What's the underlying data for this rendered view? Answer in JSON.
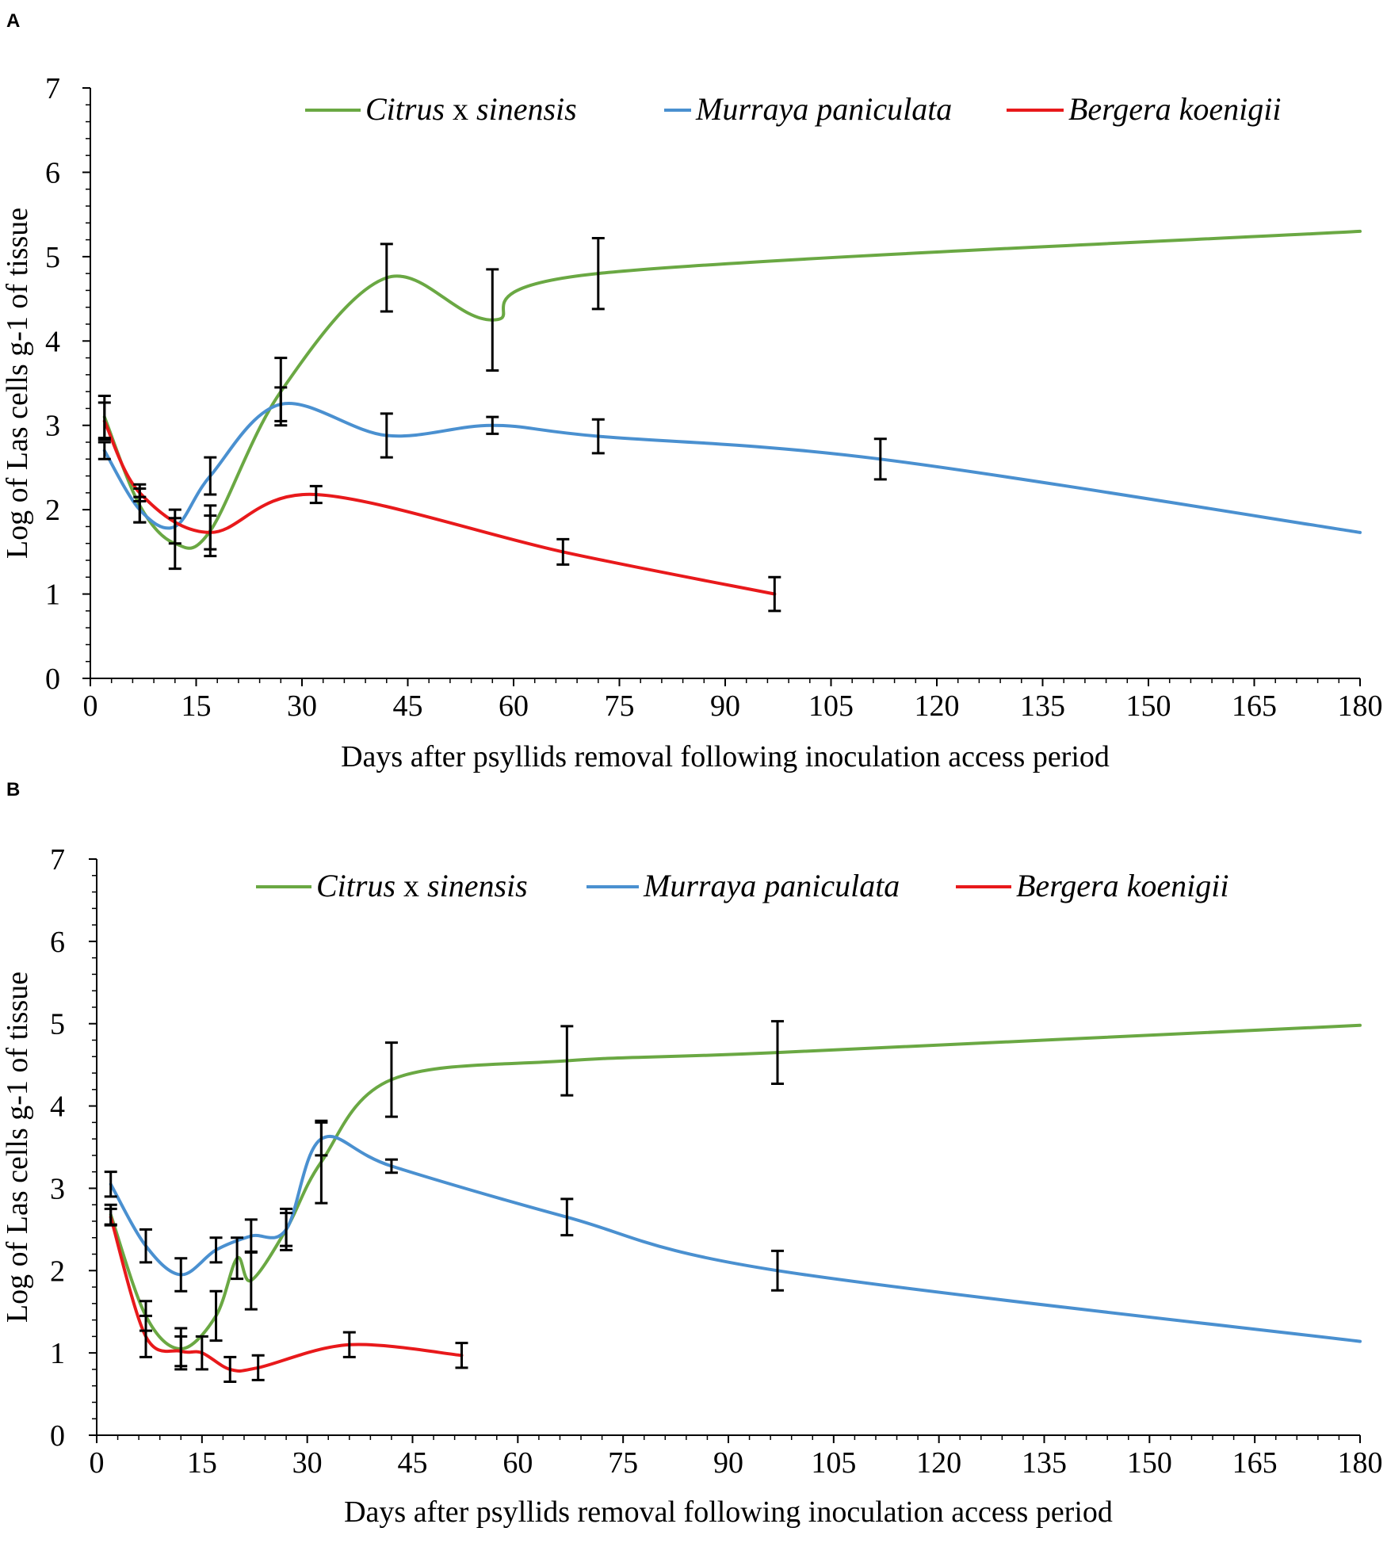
{
  "chart_data": [
    {
      "type": "line",
      "panel": "A",
      "xlabel": "Days after psyllids removal following inoculation access period",
      "ylabel": "Log of Las cells g-1 of tissue",
      "xlim": [
        0,
        180
      ],
      "ylim": [
        0,
        7
      ],
      "xticks": [
        "0",
        "15",
        "30",
        "45",
        "60",
        "75",
        "90",
        "105",
        "120",
        "135",
        "150",
        "165",
        "180"
      ],
      "yticks": [
        "0",
        "1",
        "2",
        "3",
        "4",
        "5",
        "6",
        "7"
      ],
      "legend_placement": "top",
      "series": [
        {
          "name_parts": [
            "Citrus",
            " x ",
            "sinensis"
          ],
          "color": "#6aa843",
          "points": [
            [
              2,
              3.1
            ],
            [
              7,
              2.05
            ],
            [
              12,
              1.6
            ],
            [
              17,
              1.75
            ],
            [
              27,
              3.4
            ],
            [
              42,
              4.75
            ],
            [
              57,
              4.25
            ],
            [
              72,
              4.8
            ],
            [
              180,
              5.3
            ]
          ],
          "errors": [
            0.25,
            0.2,
            0.3,
            0.3,
            0.4,
            0.4,
            0.6,
            0.42,
            0
          ]
        },
        {
          "name_parts": [
            "Murraya paniculata"
          ],
          "color": "#4a90d0",
          "points": [
            [
              2,
              2.7
            ],
            [
              7,
              2.0
            ],
            [
              12,
              1.8
            ],
            [
              17,
              2.4
            ],
            [
              27,
              3.25
            ],
            [
              42,
              2.88
            ],
            [
              57,
              3.0
            ],
            [
              72,
              2.87
            ],
            [
              112,
              2.6
            ],
            [
              180,
              1.73
            ]
          ],
          "errors": [
            0.1,
            0.15,
            0.2,
            0.22,
            0.2,
            0.26,
            0.1,
            0.2,
            0.24,
            0
          ]
        },
        {
          "name_parts": [
            "Bergera koenigii"
          ],
          "color": "#e8191b",
          "points": [
            [
              2,
              3.05
            ],
            [
              7,
              2.2
            ],
            [
              17,
              1.73
            ],
            [
              32,
              2.18
            ],
            [
              67,
              1.5
            ],
            [
              97,
              1.0
            ]
          ],
          "errors": [
            0.22,
            0.1,
            0.2,
            0.1,
            0.15,
            0.2
          ]
        }
      ]
    },
    {
      "type": "line",
      "panel": "B",
      "xlabel": "Days after psyllids removal following inoculation access period",
      "ylabel": "Log of Las cells g-1 of tissue",
      "xlim": [
        0,
        180
      ],
      "ylim": [
        0,
        7
      ],
      "xticks": [
        "0",
        "15",
        "30",
        "45",
        "60",
        "75",
        "90",
        "105",
        "120",
        "135",
        "150",
        "165",
        "180"
      ],
      "yticks": [
        "0",
        "1",
        "2",
        "3",
        "4",
        "5",
        "6",
        "7"
      ],
      "legend_placement": "top",
      "series": [
        {
          "name_parts": [
            "Citrus",
            " x ",
            "sinensis"
          ],
          "color": "#6aa843",
          "points": [
            [
              2,
              2.68
            ],
            [
              7,
              1.45
            ],
            [
              12,
              1.05
            ],
            [
              17,
              1.45
            ],
            [
              20,
              2.15
            ],
            [
              22,
              1.88
            ],
            [
              27,
              2.5
            ],
            [
              32,
              3.32
            ],
            [
              42,
              4.32
            ],
            [
              67,
              4.55
            ],
            [
              97,
              4.65
            ],
            [
              180,
              4.98
            ]
          ],
          "errors": [
            0.12,
            0.18,
            0.25,
            0.3,
            0.25,
            0.35,
            0.2,
            0.5,
            0.45,
            0.42,
            0.38,
            0
          ]
        },
        {
          "name_parts": [
            "Murraya paniculata"
          ],
          "color": "#4a90d0",
          "points": [
            [
              2,
              3.05
            ],
            [
              7,
              2.3
            ],
            [
              12,
              1.95
            ],
            [
              17,
              2.25
            ],
            [
              22,
              2.42
            ],
            [
              27,
              2.5
            ],
            [
              32,
              3.6
            ],
            [
              42,
              3.27
            ],
            [
              67,
              2.65
            ],
            [
              97,
              2.0
            ],
            [
              180,
              1.14
            ]
          ],
          "errors": [
            0.15,
            0.2,
            0.2,
            0.15,
            0.2,
            0.25,
            0.2,
            0.08,
            0.22,
            0.24,
            0
          ]
        },
        {
          "name_parts": [
            "Bergera koenigii"
          ],
          "color": "#e8191b",
          "points": [
            [
              2,
              2.65
            ],
            [
              7,
              1.2
            ],
            [
              12,
              1.02
            ],
            [
              15,
              1.0
            ],
            [
              19,
              0.8
            ],
            [
              23,
              0.82
            ],
            [
              36,
              1.1
            ],
            [
              52,
              0.97
            ]
          ],
          "errors": [
            0.1,
            0.25,
            0.18,
            0.2,
            0.15,
            0.15,
            0.15,
            0.15
          ]
        }
      ]
    }
  ]
}
